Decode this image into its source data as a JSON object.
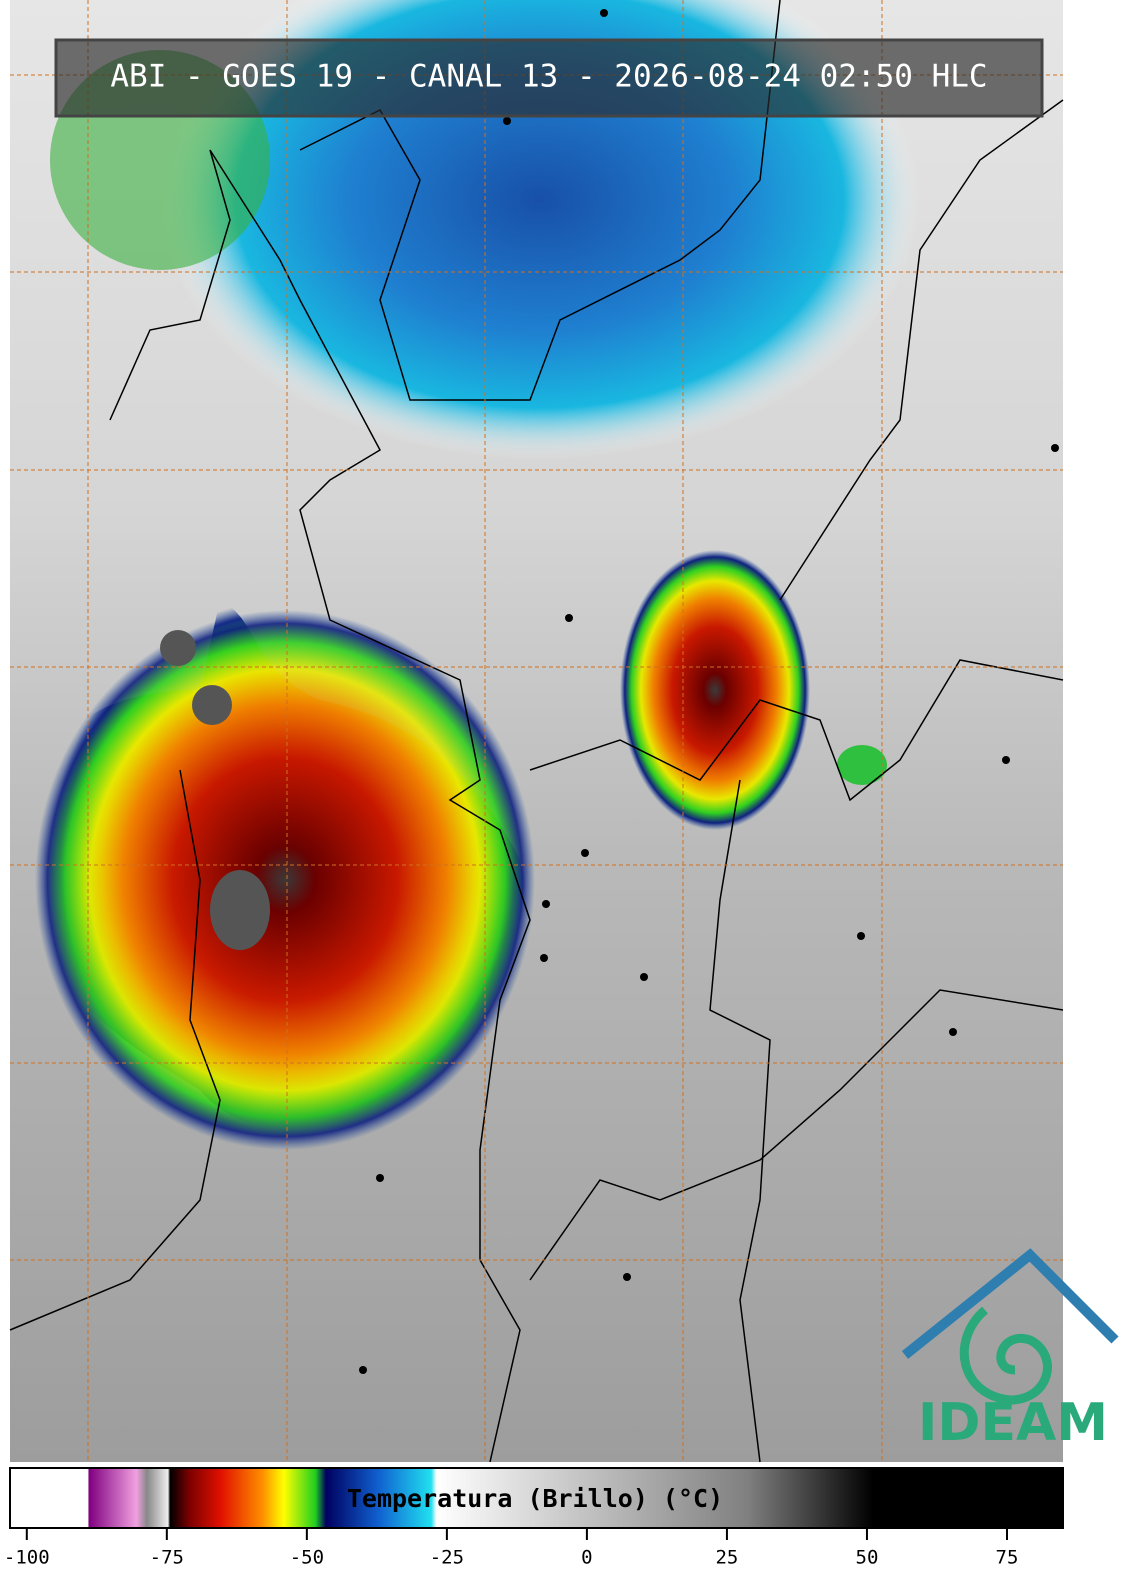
{
  "title": "ABI - GOES 19 - CANAL 13 - 2026-08-24 02:50 HLC",
  "colorbar": {
    "label": "Temperatura (Brillo) (°C)",
    "range": [
      -103,
      85
    ],
    "ticks": [
      -100,
      -75,
      -50,
      -25,
      0,
      25,
      50,
      75
    ]
  },
  "logo": "IDEAM"
}
